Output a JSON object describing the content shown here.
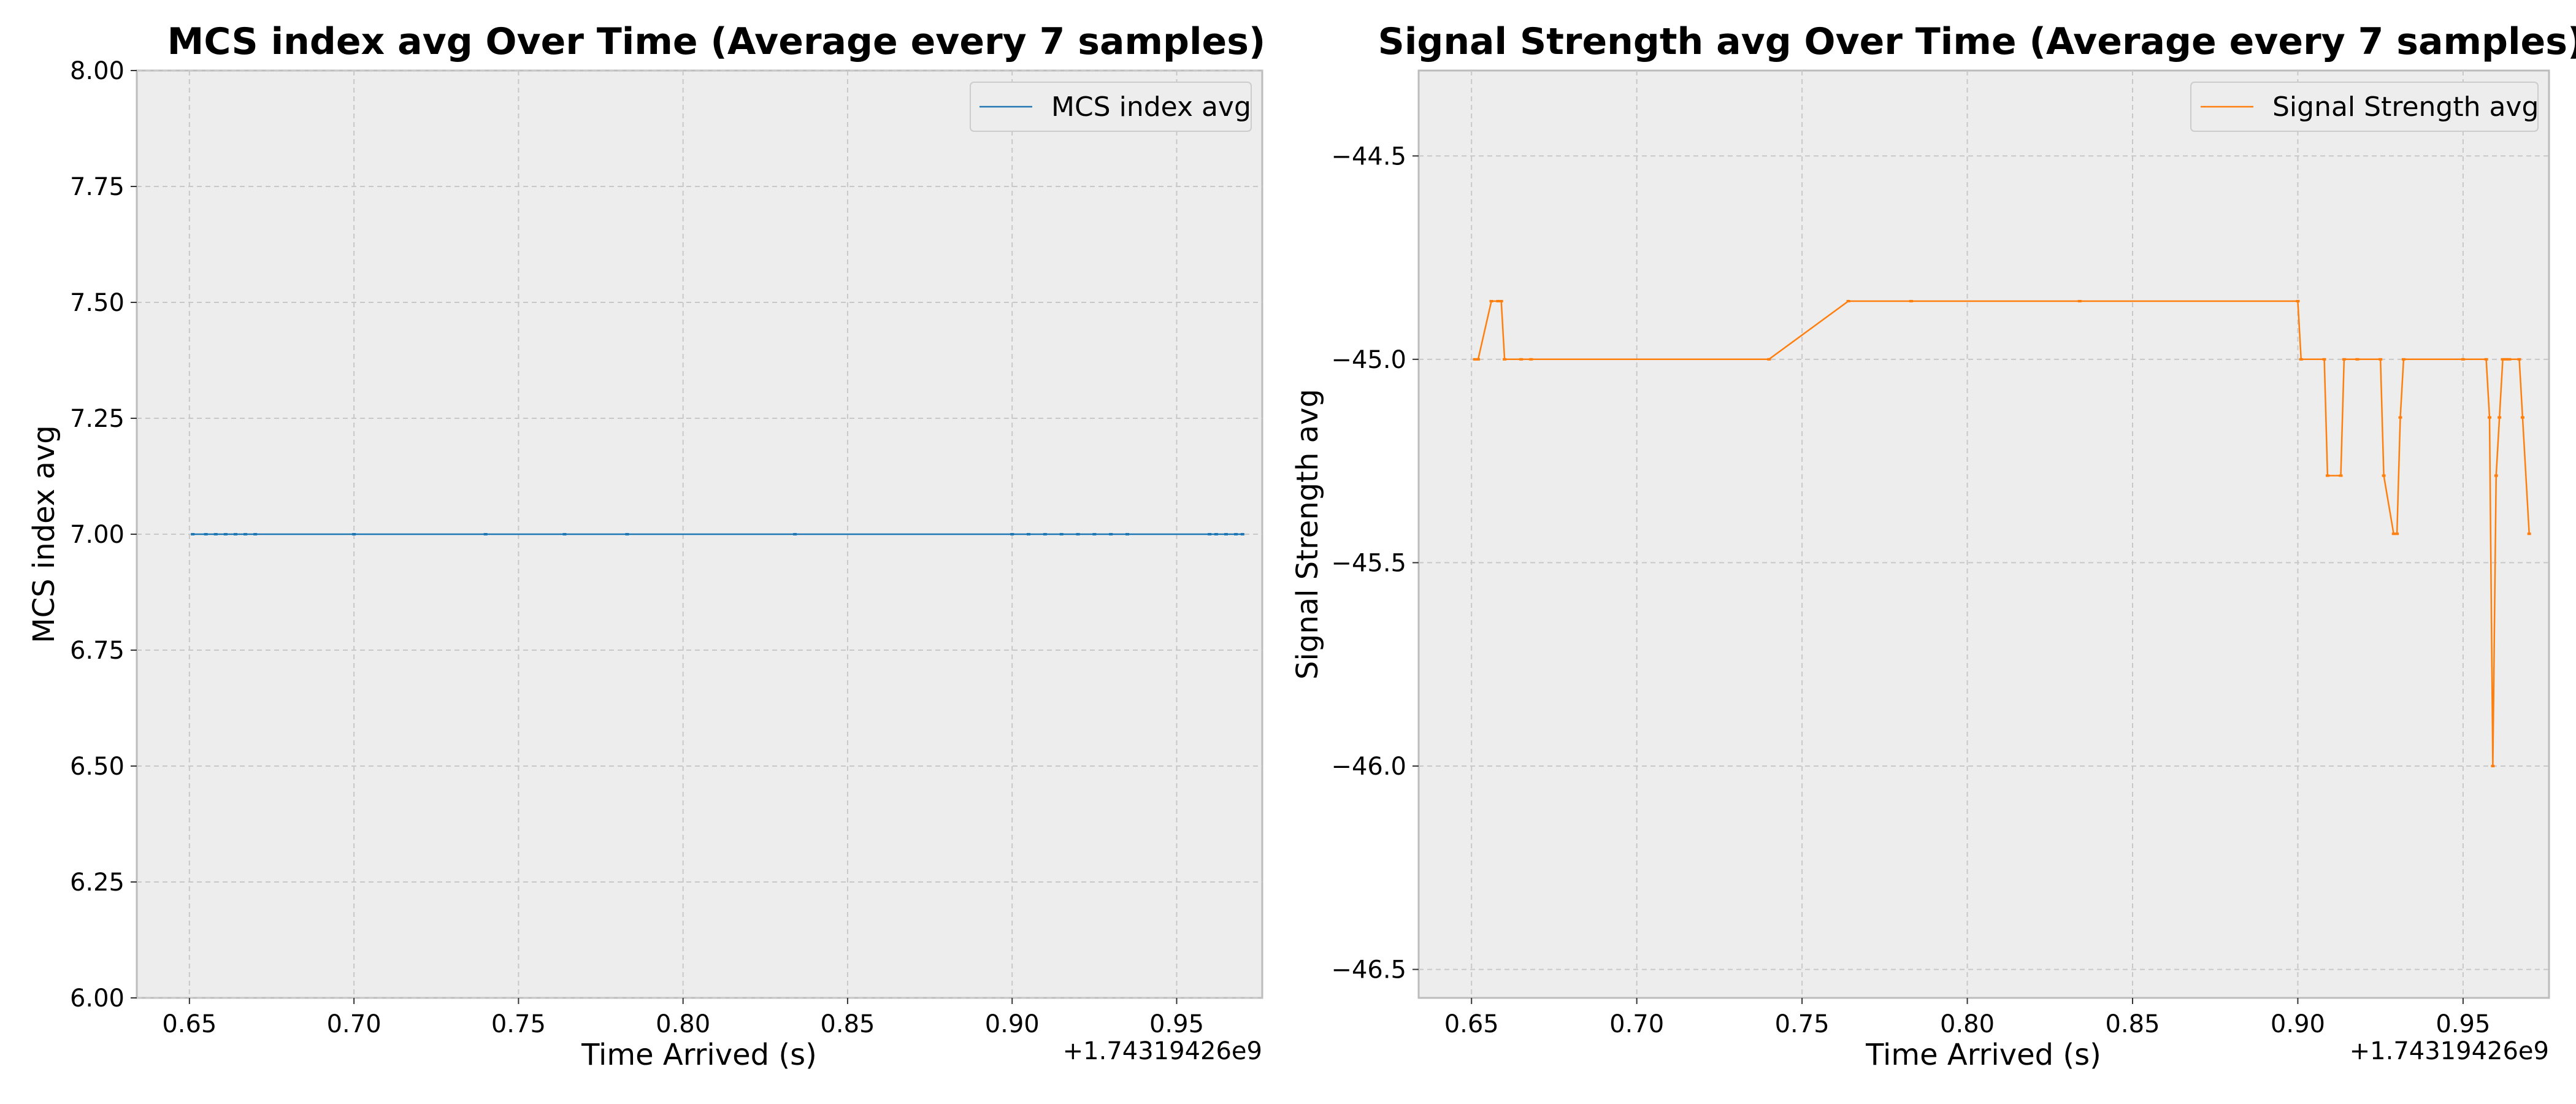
{
  "chart_data": [
    {
      "type": "line",
      "title": "MCS index avg Over Time (Average every 7 samples)",
      "xlabel": "Time Arrived (s)",
      "ylabel": "MCS index avg",
      "x_offset_label": "+1.74319426e9",
      "xlim": [
        0.634,
        0.976
      ],
      "ylim": [
        6.0,
        8.0
      ],
      "xticks": [
        "0.65",
        "0.70",
        "0.75",
        "0.80",
        "0.85",
        "0.90",
        "0.95"
      ],
      "yticks": [
        "6.00",
        "6.25",
        "6.50",
        "6.75",
        "7.00",
        "7.25",
        "7.50",
        "7.75",
        "8.00"
      ],
      "grid": true,
      "legend_position": "top-right",
      "color": "#1f77b4",
      "series": [
        {
          "name": "MCS index avg",
          "x": [
            0.651,
            0.655,
            0.658,
            0.661,
            0.664,
            0.667,
            0.67,
            0.7,
            0.74,
            0.764,
            0.783,
            0.834,
            0.9,
            0.905,
            0.91,
            0.915,
            0.92,
            0.925,
            0.93,
            0.935,
            0.96,
            0.962,
            0.965,
            0.968,
            0.97
          ],
          "y": [
            7.0,
            7.0,
            7.0,
            7.0,
            7.0,
            7.0,
            7.0,
            7.0,
            7.0,
            7.0,
            7.0,
            7.0,
            7.0,
            7.0,
            7.0,
            7.0,
            7.0,
            7.0,
            7.0,
            7.0,
            7.0,
            7.0,
            7.0,
            7.0,
            7.0
          ]
        }
      ]
    },
    {
      "type": "line",
      "title": "Signal Strength avg Over Time (Average every 7 samples)",
      "xlabel": "Time Arrived (s)",
      "ylabel": "Signal Strength avg",
      "x_offset_label": "+1.74319426e9",
      "xlim": [
        0.634,
        0.976
      ],
      "ylim": [
        -46.57,
        -44.29
      ],
      "xticks": [
        "0.65",
        "0.70",
        "0.75",
        "0.80",
        "0.85",
        "0.90",
        "0.95"
      ],
      "yticks": [
        "−44.5",
        "−45.0",
        "−45.5",
        "−46.0",
        "−46.5"
      ],
      "yticks_values": [
        -44.5,
        -45.0,
        -45.5,
        -46.0,
        -46.5
      ],
      "grid": true,
      "legend_position": "top-right",
      "color": "#ff7f0e",
      "series": [
        {
          "name": "Signal Strength avg",
          "x": [
            0.651,
            0.652,
            0.656,
            0.658,
            0.659,
            0.66,
            0.665,
            0.668,
            0.74,
            0.764,
            0.783,
            0.834,
            0.9,
            0.901,
            0.908,
            0.909,
            0.913,
            0.914,
            0.918,
            0.925,
            0.926,
            0.929,
            0.93,
            0.931,
            0.932,
            0.95,
            0.957,
            0.958,
            0.959,
            0.96,
            0.961,
            0.962,
            0.963,
            0.964,
            0.967,
            0.968,
            0.97
          ],
          "y": [
            -45.0,
            -45.0,
            -44.857,
            -44.857,
            -44.857,
            -45.0,
            -45.0,
            -45.0,
            -45.0,
            -44.857,
            -44.857,
            -44.857,
            -44.857,
            -45.0,
            -45.0,
            -45.286,
            -45.286,
            -45.0,
            -45.0,
            -45.0,
            -45.286,
            -45.429,
            -45.429,
            -45.143,
            -45.0,
            -45.0,
            -45.0,
            -45.143,
            -46.0,
            -45.286,
            -45.143,
            -45.0,
            -45.0,
            -45.0,
            -45.0,
            -45.143,
            -45.429
          ]
        }
      ]
    }
  ]
}
